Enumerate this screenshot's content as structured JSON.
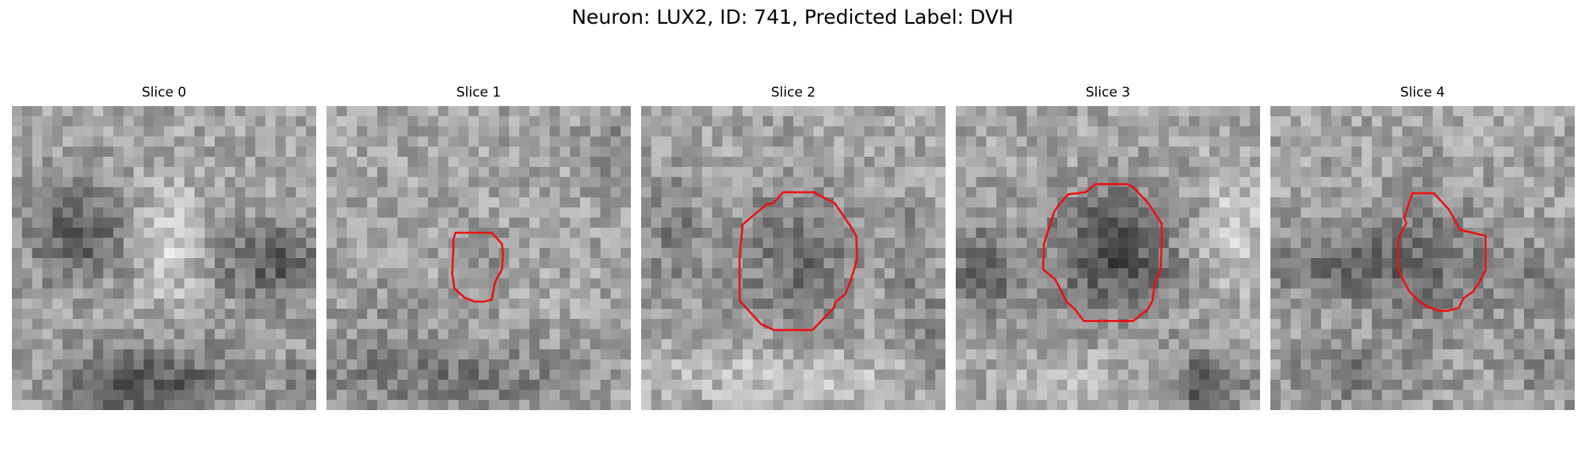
{
  "figure": {
    "title": "Neuron: LUX2, ID: 741, Predicted Label: DVH"
  },
  "slices": [
    {
      "title": "Slice 0",
      "has_contour": false
    },
    {
      "title": "Slice 1",
      "has_contour": true
    },
    {
      "title": "Slice 2",
      "has_contour": true
    },
    {
      "title": "Slice 3",
      "has_contour": true
    },
    {
      "title": "Slice 4",
      "has_contour": true
    }
  ],
  "colors": {
    "contour": "#ee1111",
    "background": "#ffffff"
  }
}
